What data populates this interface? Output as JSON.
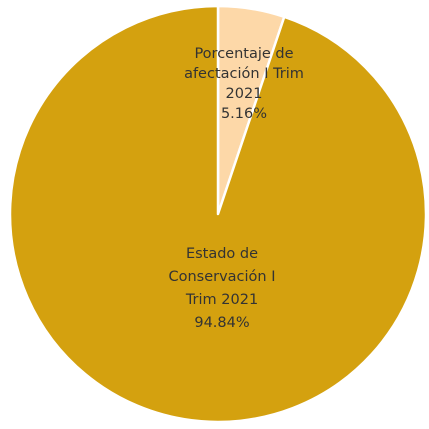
{
  "chart_data": {
    "type": "pie",
    "title": "",
    "slices": [
      {
        "label_lines": [
          "Porcentaje de",
          "afectación I Trim",
          "2021"
        ],
        "value_label": "5.16%",
        "value": 5.16,
        "color": "#FDD8A8"
      },
      {
        "label_lines": [
          "Estado de",
          "Conservación I",
          "Trim 2021"
        ],
        "value_label": "94.84%",
        "value": 94.84,
        "color": "#D4A10F"
      }
    ],
    "slice_border_color": "#FFFFFF",
    "start_angle_deg": 0,
    "direction": "clockwise",
    "legend": "none"
  }
}
